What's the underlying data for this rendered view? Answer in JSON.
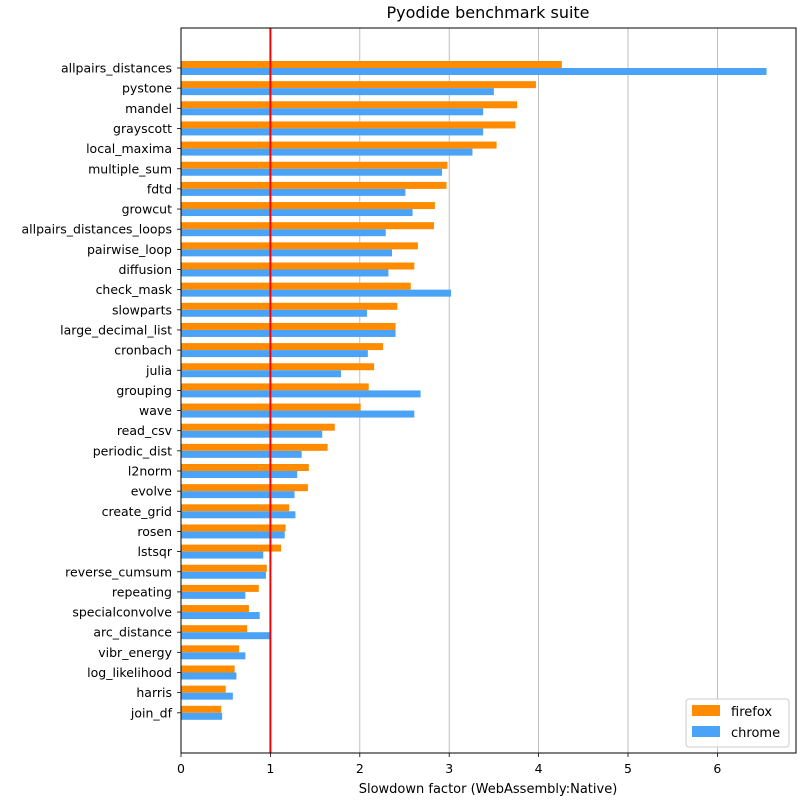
{
  "chart_data": {
    "type": "bar",
    "orientation": "horizontal",
    "title": "Pyodide benchmark suite",
    "xlabel": "Slowdown factor (WebAssembly:Native)",
    "ylabel": "",
    "xlim": [
      0,
      6.9
    ],
    "xticks": [
      0,
      1,
      2,
      3,
      4,
      5,
      6
    ],
    "grid": "vertical",
    "reference_line": {
      "x": 1,
      "color": "#ff0000"
    },
    "legend_position": "bottom-right",
    "categories": [
      "allpairs_distances",
      "pystone",
      "mandel",
      "grayscott",
      "local_maxima",
      "multiple_sum",
      "fdtd",
      "growcut",
      "allpairs_distances_loops",
      "pairwise_loop",
      "diffusion",
      "check_mask",
      "slowparts",
      "large_decimal_list",
      "cronbach",
      "julia",
      "grouping",
      "wave",
      "read_csv",
      "periodic_dist",
      "l2norm",
      "evolve",
      "create_grid",
      "rosen",
      "lstsqr",
      "reverse_cumsum",
      "repeating",
      "specialconvolve",
      "arc_distance",
      "vibr_energy",
      "log_likelihood",
      "harris",
      "join_df"
    ],
    "series": [
      {
        "name": "firefox",
        "color": "#ff8c00",
        "values": [
          4.26,
          3.97,
          3.76,
          3.74,
          3.53,
          2.98,
          2.97,
          2.84,
          2.83,
          2.65,
          2.61,
          2.57,
          2.42,
          2.4,
          2.26,
          2.16,
          2.1,
          2.01,
          1.72,
          1.64,
          1.43,
          1.42,
          1.21,
          1.17,
          1.12,
          0.96,
          0.87,
          0.76,
          0.74,
          0.65,
          0.6,
          0.5,
          0.45
        ]
      },
      {
        "name": "chrome",
        "color": "#4aa3f7",
        "values": [
          6.55,
          3.5,
          3.38,
          3.38,
          3.26,
          2.92,
          2.51,
          2.59,
          2.29,
          2.36,
          2.32,
          3.02,
          2.08,
          2.4,
          2.09,
          1.79,
          2.68,
          2.61,
          1.58,
          1.35,
          1.3,
          1.27,
          1.28,
          1.16,
          0.92,
          0.95,
          0.72,
          0.88,
          0.99,
          0.72,
          0.62,
          0.58,
          0.46
        ]
      }
    ]
  }
}
